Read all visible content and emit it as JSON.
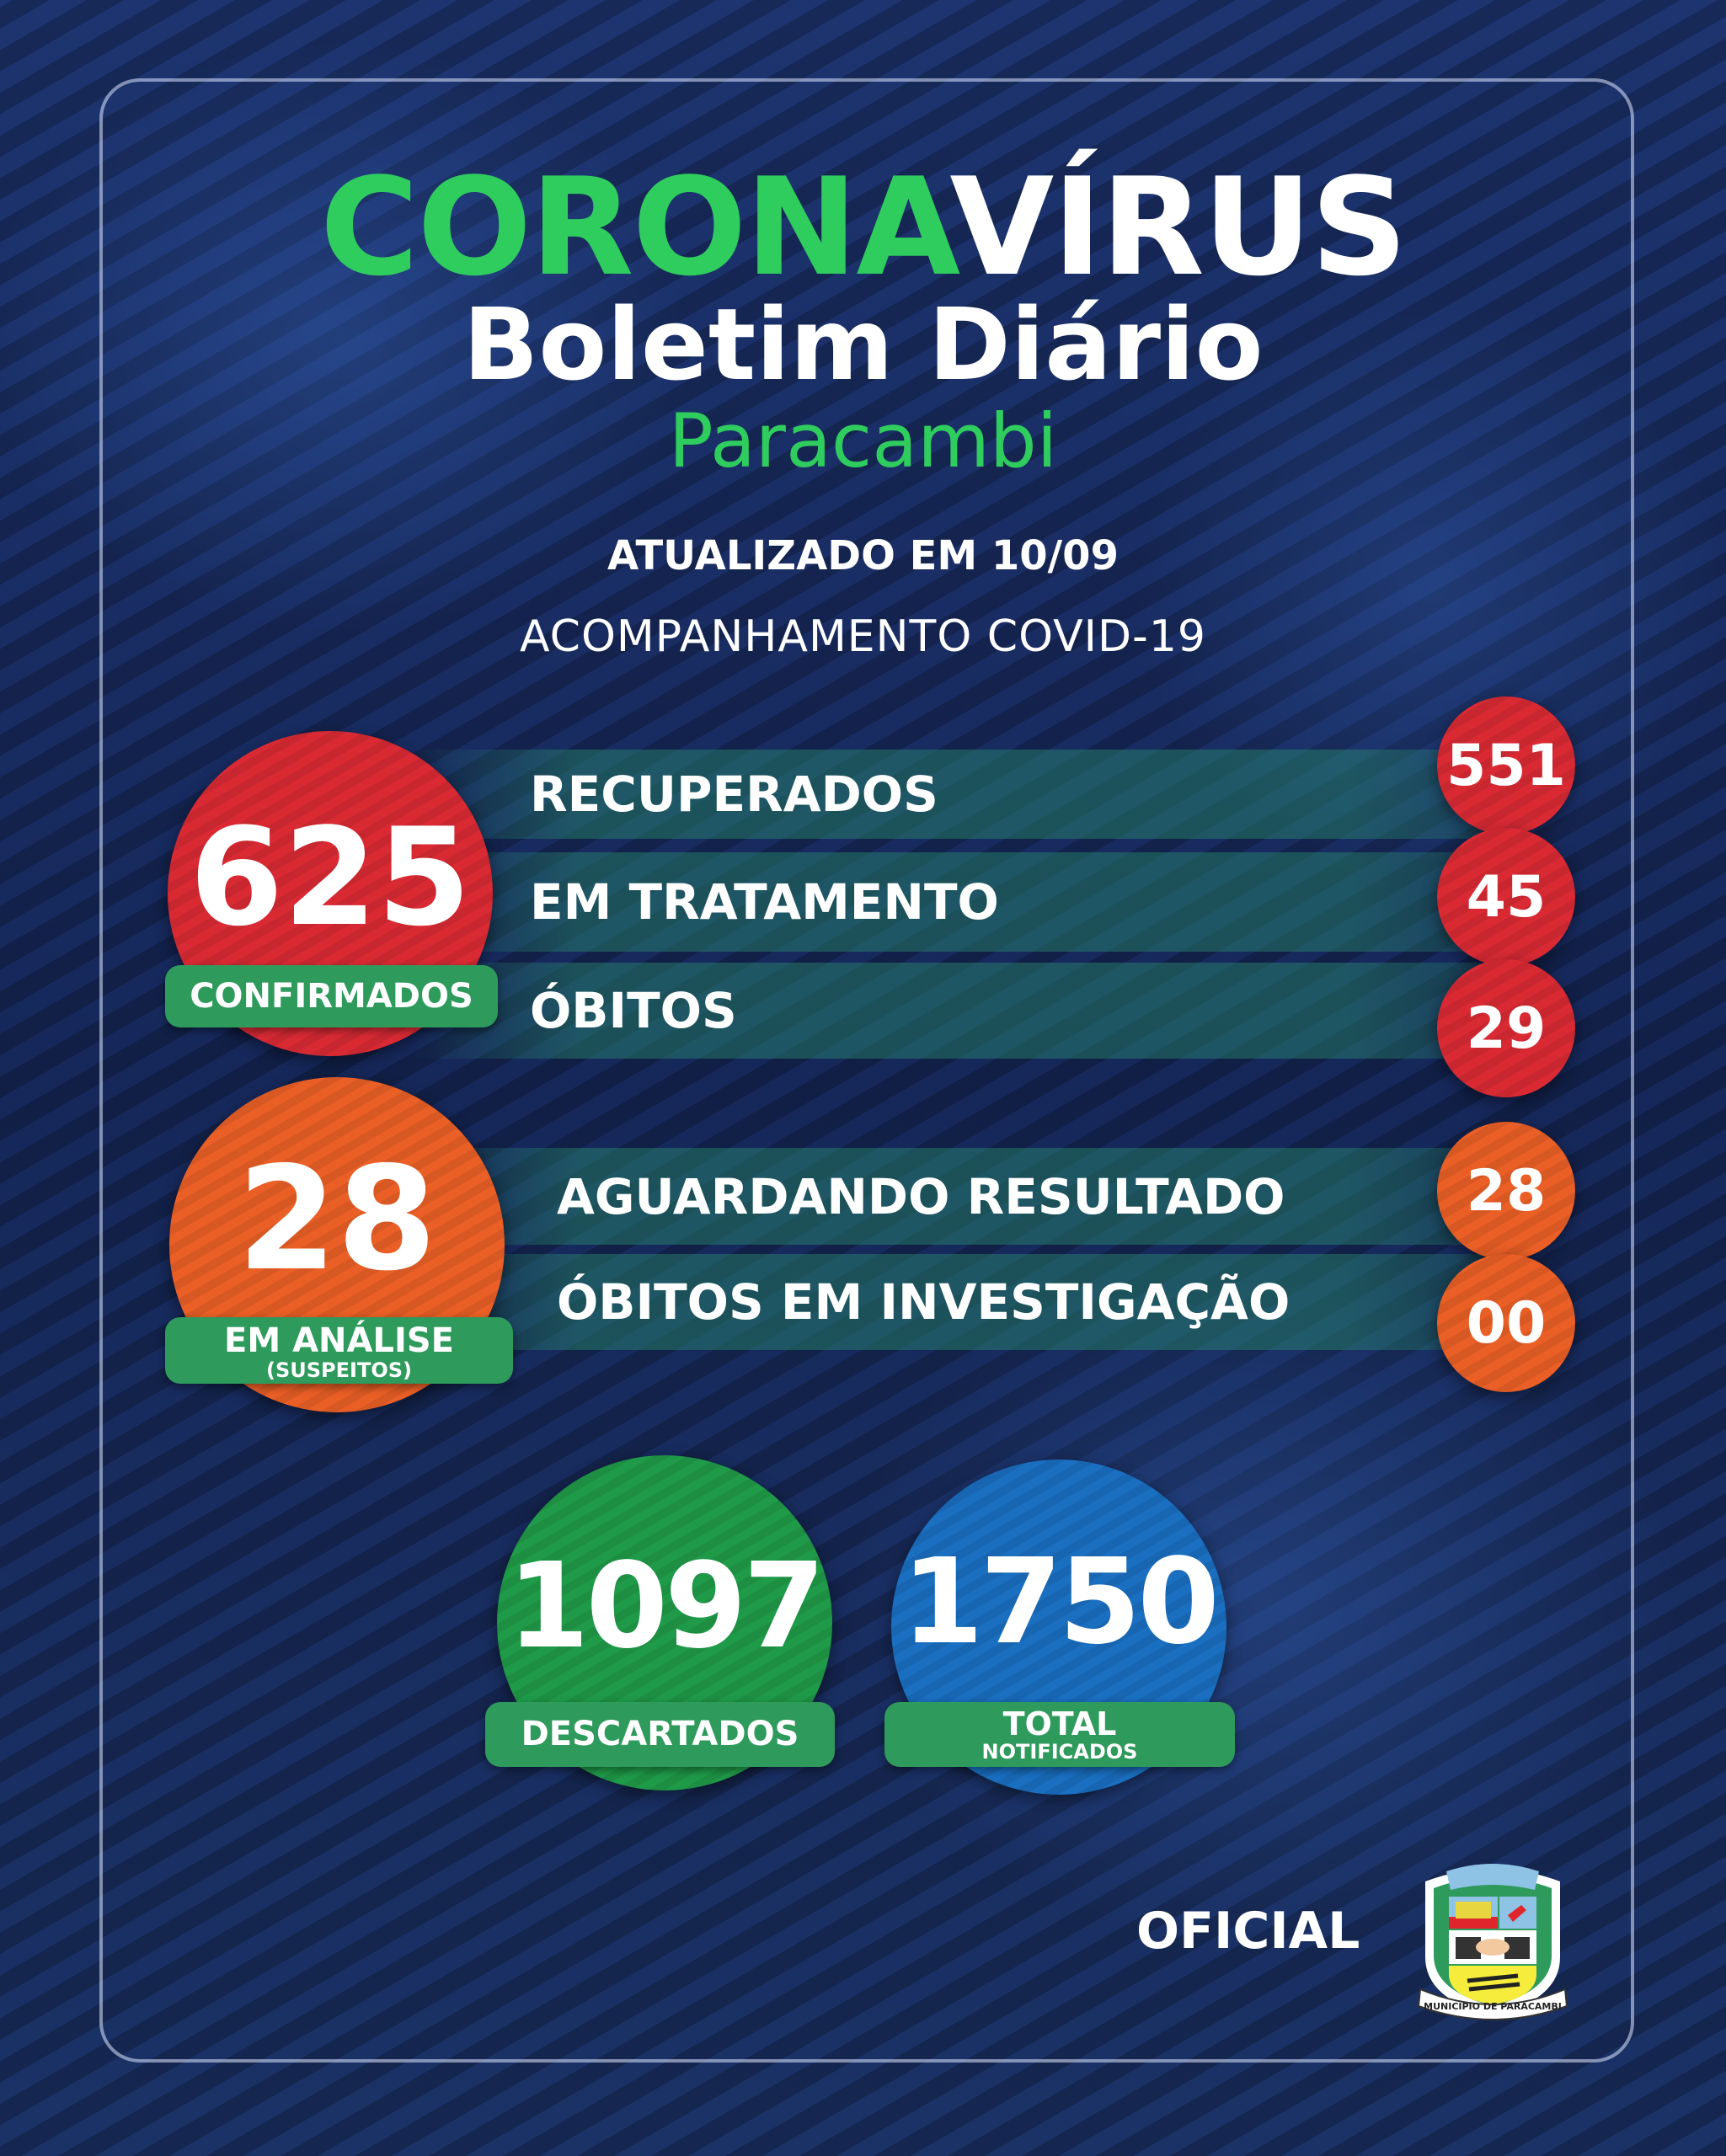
{
  "header": {
    "title_green": "CORONA",
    "title_white": "VÍRUS",
    "subtitle": "Boletim Diário",
    "city": "Paracambi",
    "updated": "ATUALIZADO EM 10/09",
    "tracking": "ACOMPANHAMENTO COVID-19"
  },
  "confirmed": {
    "value": "625",
    "label": "CONFIRMADOS",
    "rows": [
      {
        "label": "RECUPERADOS",
        "value": "551"
      },
      {
        "label": "EM TRATAMENTO",
        "value": "45"
      },
      {
        "label": "ÓBITOS",
        "value": "29"
      }
    ]
  },
  "analysis": {
    "value": "28",
    "label": "EM ANÁLISE",
    "sublabel": "(SUSPEITOS)",
    "rows": [
      {
        "label": "AGUARDANDO RESULTADO",
        "value": "28"
      },
      {
        "label": "ÓBITOS EM INVESTIGAÇÃO",
        "value": "00"
      }
    ]
  },
  "discarded": {
    "value": "1097",
    "label": "DESCARTADOS"
  },
  "total": {
    "value": "1750",
    "label": "TOTAL",
    "sublabel": "NOTIFICADOS"
  },
  "footer": {
    "official": "OFICIAL",
    "crest_text": "MUNICIPIO DE PARACAMBI"
  },
  "colors": {
    "red": "#d92a34",
    "orange": "#ea5f26",
    "green": "#2fcc5e",
    "blue": "#1a6fc0",
    "label_green": "#2e9a5c"
  }
}
